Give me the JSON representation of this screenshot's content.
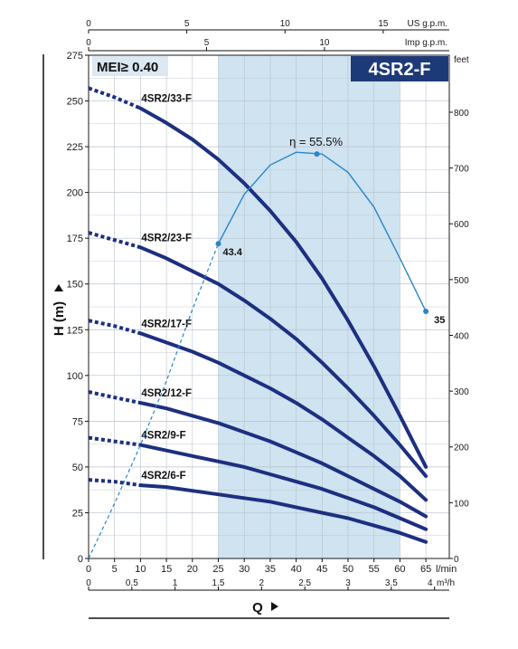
{
  "chart_data": {
    "type": "line",
    "title": "4SR2-F",
    "mei_label": "MEI≥ 0.40",
    "ylabel": "H (m)",
    "xlabel": "Q",
    "x_unit": "l/min",
    "xlim": [
      0,
      65
    ],
    "ylim": [
      0,
      275
    ],
    "x_ticks": [
      0,
      5,
      10,
      15,
      20,
      25,
      30,
      35,
      40,
      45,
      50,
      55,
      60,
      65
    ],
    "x_tick_labels": [
      "0",
      "5",
      "10",
      "15",
      "20",
      "25",
      "30",
      "35",
      "40",
      "45",
      "50",
      "55",
      "60",
      "65"
    ],
    "y_ticks": [
      0,
      25,
      50,
      75,
      100,
      125,
      150,
      175,
      200,
      225,
      250,
      275
    ],
    "y_tick_labels": [
      "0",
      "25",
      "50",
      "75",
      "100",
      "125",
      "150",
      "175",
      "200",
      "225",
      "250",
      "275"
    ],
    "secondary_axes": {
      "us_gpm": {
        "label": "US g.p.m.",
        "ticks": [
          0,
          5,
          10,
          15
        ],
        "tick_labels": [
          "0",
          "5",
          "10",
          "15"
        ]
      },
      "imp_gpm": {
        "label": "Imp g.p.m.",
        "ticks": [
          0,
          5,
          10
        ],
        "tick_labels": [
          "0",
          "5",
          "10"
        ]
      },
      "m3h": {
        "label": "m³/h",
        "ticks": [
          0,
          0.5,
          1,
          1.5,
          2,
          2.5,
          3,
          3.5,
          4
        ],
        "tick_labels": [
          "0",
          "0.5",
          "1",
          "1.5",
          "2",
          "2.5",
          "3",
          "3.5",
          "4"
        ]
      },
      "feet": {
        "label": "feet",
        "ticks": [
          0,
          100,
          200,
          300,
          400,
          500,
          600,
          700,
          800
        ],
        "tick_labels": [
          "0",
          "100",
          "200",
          "300",
          "400",
          "500",
          "600",
          "700",
          "800"
        ]
      }
    },
    "recommended_range": [
      25,
      60
    ],
    "series": [
      {
        "name": "4SR2/33-F",
        "x": [
          0,
          5,
          10,
          15,
          20,
          25,
          30,
          35,
          40,
          45,
          50,
          55,
          60,
          65
        ],
        "values": [
          257,
          252,
          246,
          238,
          229,
          218,
          205,
          190,
          173,
          153,
          130,
          105,
          78,
          50
        ]
      },
      {
        "name": "4SR2/23-F",
        "x": [
          0,
          5,
          10,
          15,
          20,
          25,
          30,
          35,
          40,
          45,
          50,
          55,
          60,
          65
        ],
        "values": [
          178,
          174,
          170,
          164,
          157,
          150,
          141,
          131,
          120,
          107,
          93,
          78,
          62,
          45
        ]
      },
      {
        "name": "4SR2/17-F",
        "x": [
          0,
          5,
          10,
          15,
          20,
          25,
          30,
          35,
          40,
          45,
          50,
          55,
          60,
          65
        ],
        "values": [
          130,
          127,
          123,
          118,
          113,
          107,
          100,
          93,
          85,
          76,
          66,
          56,
          45,
          32
        ]
      },
      {
        "name": "4SR2/12-F",
        "x": [
          0,
          5,
          10,
          15,
          20,
          25,
          30,
          35,
          40,
          45,
          50,
          55,
          60,
          65
        ],
        "values": [
          91,
          88,
          85,
          82,
          78,
          74,
          69,
          64,
          58,
          52,
          45,
          38,
          31,
          23
        ]
      },
      {
        "name": "4SR2/9-F",
        "x": [
          0,
          5,
          10,
          15,
          20,
          25,
          30,
          35,
          40,
          45,
          50,
          55,
          60,
          65
        ],
        "values": [
          66,
          64,
          62,
          59,
          56,
          53,
          50,
          46,
          42,
          38,
          33,
          28,
          22,
          16
        ]
      },
      {
        "name": "4SR2/6-F",
        "x": [
          0,
          5,
          10,
          15,
          20,
          25,
          30,
          35,
          40,
          45,
          50,
          55,
          60,
          65
        ],
        "values": [
          43,
          42,
          40,
          39,
          37,
          35,
          33,
          31,
          28,
          25,
          22,
          18,
          14,
          9
        ]
      }
    ],
    "efficiency": {
      "label": "η = 55.5%",
      "peak": 55.5,
      "x": [
        0,
        5,
        10,
        15,
        20,
        25,
        30,
        35,
        40,
        45,
        50,
        55,
        60,
        65
      ],
      "h_equivalent": [
        0,
        30,
        62,
        97,
        136,
        172,
        199,
        215,
        222,
        221,
        211,
        192,
        164,
        135
      ],
      "annotations": [
        {
          "x": 25,
          "h": 172,
          "text": "43.4"
        },
        {
          "x": 44,
          "h": 221,
          "text": ""
        },
        {
          "x": 65,
          "h": 135,
          "text": "35"
        }
      ]
    },
    "grid": true,
    "legend": "inline labels"
  }
}
